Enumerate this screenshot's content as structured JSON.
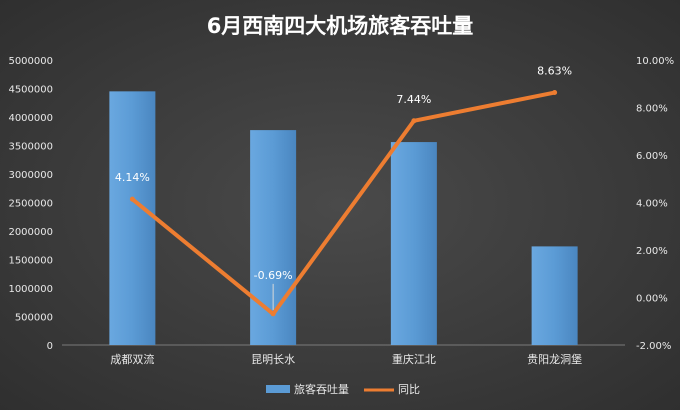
{
  "chart_data": {
    "type": "bar",
    "title": "6月西南四大机场旅客吞吐量",
    "categories": [
      "成都双流",
      "昆明长水",
      "重庆江北",
      "贵阳龙洞堡"
    ],
    "series": [
      {
        "name": "旅客吞吐量",
        "kind": "bar",
        "axis": "left",
        "color": "#5b9bd5",
        "values": [
          4450000,
          3770000,
          3560000,
          1730000
        ]
      },
      {
        "name": "同比",
        "kind": "line",
        "axis": "right",
        "color": "#ed7d31",
        "values": [
          4.14,
          -0.69,
          7.44,
          8.63
        ],
        "labels": [
          "4.14%",
          "-0.69%",
          "7.44%",
          "8.63%"
        ]
      }
    ],
    "y_left": {
      "min": 0,
      "max": 5000000,
      "step": 500000,
      "ticks": [
        "0",
        "500000",
        "1000000",
        "1500000",
        "2000000",
        "2500000",
        "3000000",
        "3500000",
        "4000000",
        "4500000",
        "5000000"
      ]
    },
    "y_right": {
      "min": -2,
      "max": 10,
      "step": 2,
      "ticks": [
        "-2.00%",
        "0.00%",
        "2.00%",
        "4.00%",
        "6.00%",
        "8.00%",
        "10.00%"
      ]
    },
    "legend_position": "bottom",
    "grid": false
  }
}
